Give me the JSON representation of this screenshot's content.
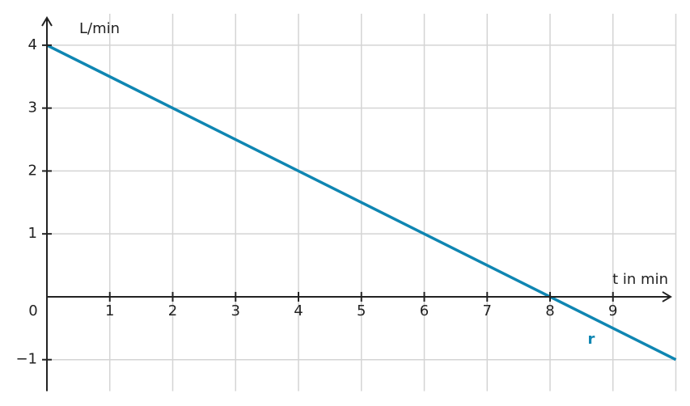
{
  "chart_data": {
    "type": "line",
    "x": [
      0,
      10
    ],
    "series": [
      {
        "name": "r",
        "color": "#0f86b2",
        "values": [
          4,
          -1
        ]
      }
    ],
    "xlabel": "t in min",
    "ylabel": "L/min",
    "origin_label": 0,
    "xlim": [
      0,
      10
    ],
    "ylim": [
      -1.5,
      4.5
    ],
    "xticks": [
      1,
      2,
      3,
      4,
      5,
      6,
      7,
      8,
      9
    ],
    "yticks": [
      {
        "value": -1,
        "label": "−1"
      },
      1,
      2,
      3,
      4
    ],
    "grid": true
  }
}
